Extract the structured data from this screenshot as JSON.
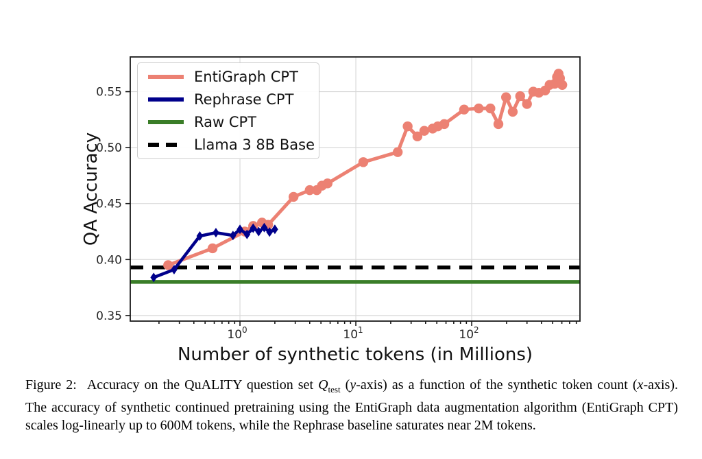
{
  "figure": {
    "caption": {
      "label": "Figure 2:",
      "part1": "Accuracy on the QuALITY question set ",
      "q_symbol": "Q",
      "q_sub": "test",
      "part2": " (",
      "y_var": "y",
      "part3": "-axis) as a function of the synthetic token count (",
      "x_var": "x",
      "part4": "-axis).  The accuracy of synthetic continued pretraining using the EntiGraph data augmentation algorithm (EntiGraph CPT) scales log-linearly up to 600M tokens, while the Rephrase baseline saturates near 2M tokens."
    }
  },
  "chart_data": {
    "type": "line",
    "title": "",
    "xlabel": "Number of synthetic tokens (in Millions)",
    "ylabel": "QA Accuracy",
    "x_scale": "log",
    "xlim": [
      0.113,
      860
    ],
    "ylim": [
      0.345,
      0.581
    ],
    "grid": true,
    "legend_position": "upper left",
    "x_ticks": [
      {
        "value": 1,
        "base": "10",
        "exp": "0"
      },
      {
        "value": 10,
        "base": "10",
        "exp": "1"
      },
      {
        "value": 100,
        "base": "10",
        "exp": "2"
      }
    ],
    "y_ticks": [
      {
        "value": 0.35,
        "label": "0.35"
      },
      {
        "value": 0.4,
        "label": "0.40"
      },
      {
        "value": 0.45,
        "label": "0.45"
      },
      {
        "value": 0.5,
        "label": "0.50"
      },
      {
        "value": 0.55,
        "label": "0.55"
      }
    ],
    "colors": {
      "grid": "#d9d9d9",
      "spine": "#1a1a1a",
      "tick_text": "#262626"
    },
    "series": [
      {
        "name": "EntiGraph CPT",
        "type": "line",
        "color": "#EC8173",
        "marker": "circle",
        "x": [
          0.24,
          0.58,
          1.1,
          1.3,
          1.55,
          1.75,
          2.9,
          4.0,
          4.6,
          5.1,
          5.7,
          11.6,
          23,
          28,
          34,
          39,
          46,
          51,
          58,
          86,
          115,
          145,
          170,
          198,
          226,
          262,
          300,
          340,
          380,
          430,
          470,
          520,
          545,
          562,
          578,
          605
        ],
        "y": [
          0.395,
          0.41,
          0.425,
          0.43,
          0.433,
          0.431,
          0.456,
          0.462,
          0.462,
          0.466,
          0.468,
          0.487,
          0.496,
          0.519,
          0.51,
          0.515,
          0.517,
          0.519,
          0.521,
          0.534,
          0.535,
          0.535,
          0.521,
          0.545,
          0.532,
          0.546,
          0.539,
          0.55,
          0.549,
          0.551,
          0.556,
          0.557,
          0.563,
          0.566,
          0.562,
          0.556
        ]
      },
      {
        "name": "Rephrase CPT",
        "type": "line",
        "color": "#00008B",
        "marker": "diamond",
        "x": [
          0.18,
          0.27,
          0.45,
          0.62,
          0.87,
          1.0,
          1.15,
          1.3,
          1.45,
          1.62,
          1.8,
          2.0
        ],
        "y": [
          0.384,
          0.391,
          0.421,
          0.424,
          0.4215,
          0.427,
          0.4225,
          0.428,
          0.425,
          0.4285,
          0.4245,
          0.427
        ]
      },
      {
        "name": "Raw CPT",
        "type": "hline",
        "color": "#3A7D28",
        "value": 0.38
      },
      {
        "name": "Llama 3 8B Base",
        "type": "hline",
        "color": "#000000",
        "dashed": true,
        "value": 0.393
      }
    ]
  }
}
